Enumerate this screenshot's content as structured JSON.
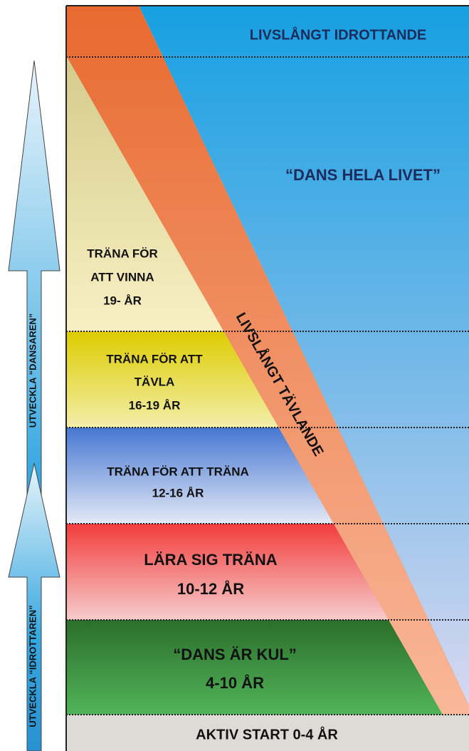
{
  "top_label": "LIVSLÅNGT IDROTTANDE",
  "motto": "“DANS HELA LIVET”",
  "band_label": "LIVSLÅNGT TÄVLANDE",
  "stages": [
    {
      "lines": [
        "TRÄNA FÖR",
        "ATT VINNA",
        "19- ÅR"
      ]
    },
    {
      "lines": [
        "TRÄNA FÖR ATT",
        "TÄVLA",
        "16-19 ÅR"
      ]
    },
    {
      "lines": [
        "TRÄNA FÖR ATT TRÄNA",
        "12-16 ÅR"
      ]
    },
    {
      "lines": [
        "LÄRA SIG TRÄNA",
        "10-12 ÅR"
      ]
    },
    {
      "lines": [
        "“DANS ÄR KUL”",
        "4-10 ÅR"
      ]
    },
    {
      "lines": [
        "AKTIV START  0-4 ÅR"
      ]
    }
  ],
  "arrows": [
    {
      "label": "UTVECKLA “DANSAREN”"
    },
    {
      "label": "UTVECKLA “IDROTTAREN”"
    }
  ]
}
